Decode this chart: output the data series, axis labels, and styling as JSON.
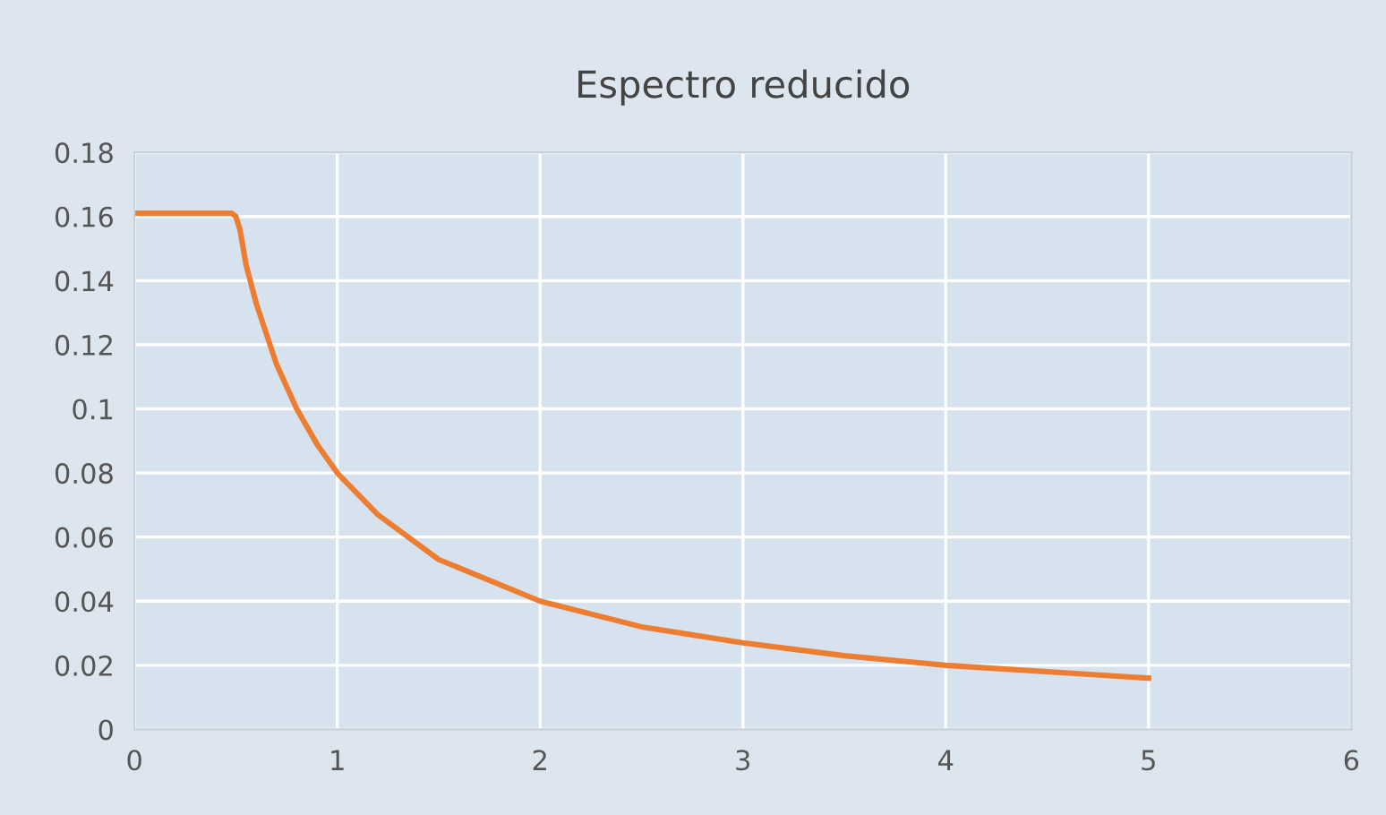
{
  "chart_data": {
    "type": "line",
    "title": "Espectro reducido",
    "series": [
      {
        "color": "#ed7d31",
        "x": [
          0,
          0.1,
          0.2,
          0.3,
          0.4,
          0.48,
          0.5,
          0.52,
          0.55,
          0.6,
          0.7,
          0.8,
          0.9,
          1,
          1.2,
          1.5,
          2,
          2.5,
          3,
          3.5,
          4,
          4.5,
          5
        ],
        "values": [
          0.161,
          0.161,
          0.161,
          0.161,
          0.161,
          0.161,
          0.16,
          0.156,
          0.145,
          0.133,
          0.114,
          0.1,
          0.089,
          0.08,
          0.067,
          0.053,
          0.04,
          0.032,
          0.027,
          0.023,
          0.02,
          0.018,
          0.016
        ]
      }
    ],
    "xlim": [
      0,
      6
    ],
    "xticks": [
      0,
      1,
      2,
      3,
      4,
      5,
      6
    ],
    "ylim": [
      0,
      0.18
    ],
    "yticks": [
      0,
      0.02,
      0.04,
      0.06,
      0.08,
      0.1,
      0.12,
      0.14,
      0.16,
      0.18
    ],
    "grid": true,
    "legend": false,
    "marker": "none",
    "line_style": "solid"
  }
}
